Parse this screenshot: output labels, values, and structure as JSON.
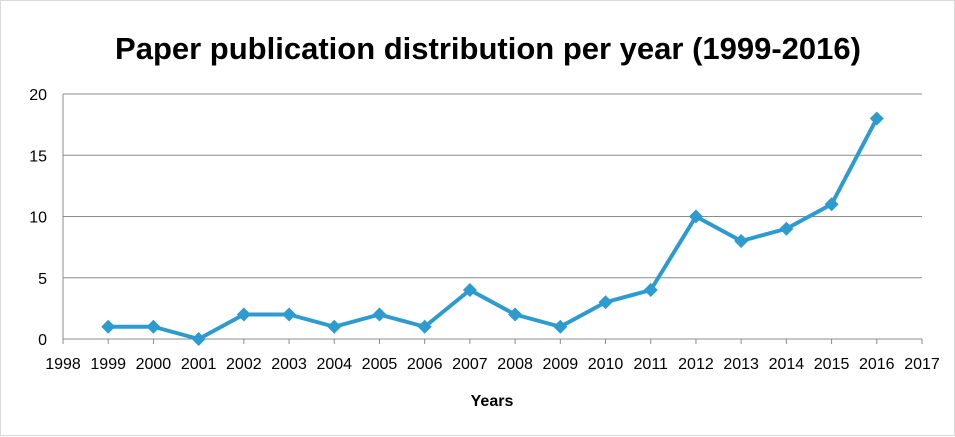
{
  "chart_data": {
    "type": "line",
    "title": "Paper publication distribution per year (1999-2016)",
    "xlabel": "Years",
    "ylabel": "",
    "x_ticks": [
      1998,
      1999,
      2000,
      2001,
      2002,
      2003,
      2004,
      2005,
      2006,
      2007,
      2008,
      2009,
      2010,
      2011,
      2012,
      2013,
      2014,
      2015,
      2016,
      2017
    ],
    "y_ticks": [
      0,
      5,
      10,
      15,
      20
    ],
    "xlim": [
      1998,
      2017
    ],
    "ylim": [
      0,
      20
    ],
    "grid": true,
    "series": [
      {
        "color": "#2e9bd0",
        "marker": "diamond",
        "x": [
          1999,
          2000,
          2001,
          2002,
          2003,
          2004,
          2005,
          2006,
          2007,
          2008,
          2009,
          2010,
          2011,
          2012,
          2013,
          2014,
          2015,
          2016
        ],
        "values": [
          1,
          1,
          0,
          2,
          2,
          1,
          2,
          1,
          4,
          2,
          1,
          3,
          4,
          10,
          8,
          9,
          11,
          18
        ]
      }
    ]
  }
}
